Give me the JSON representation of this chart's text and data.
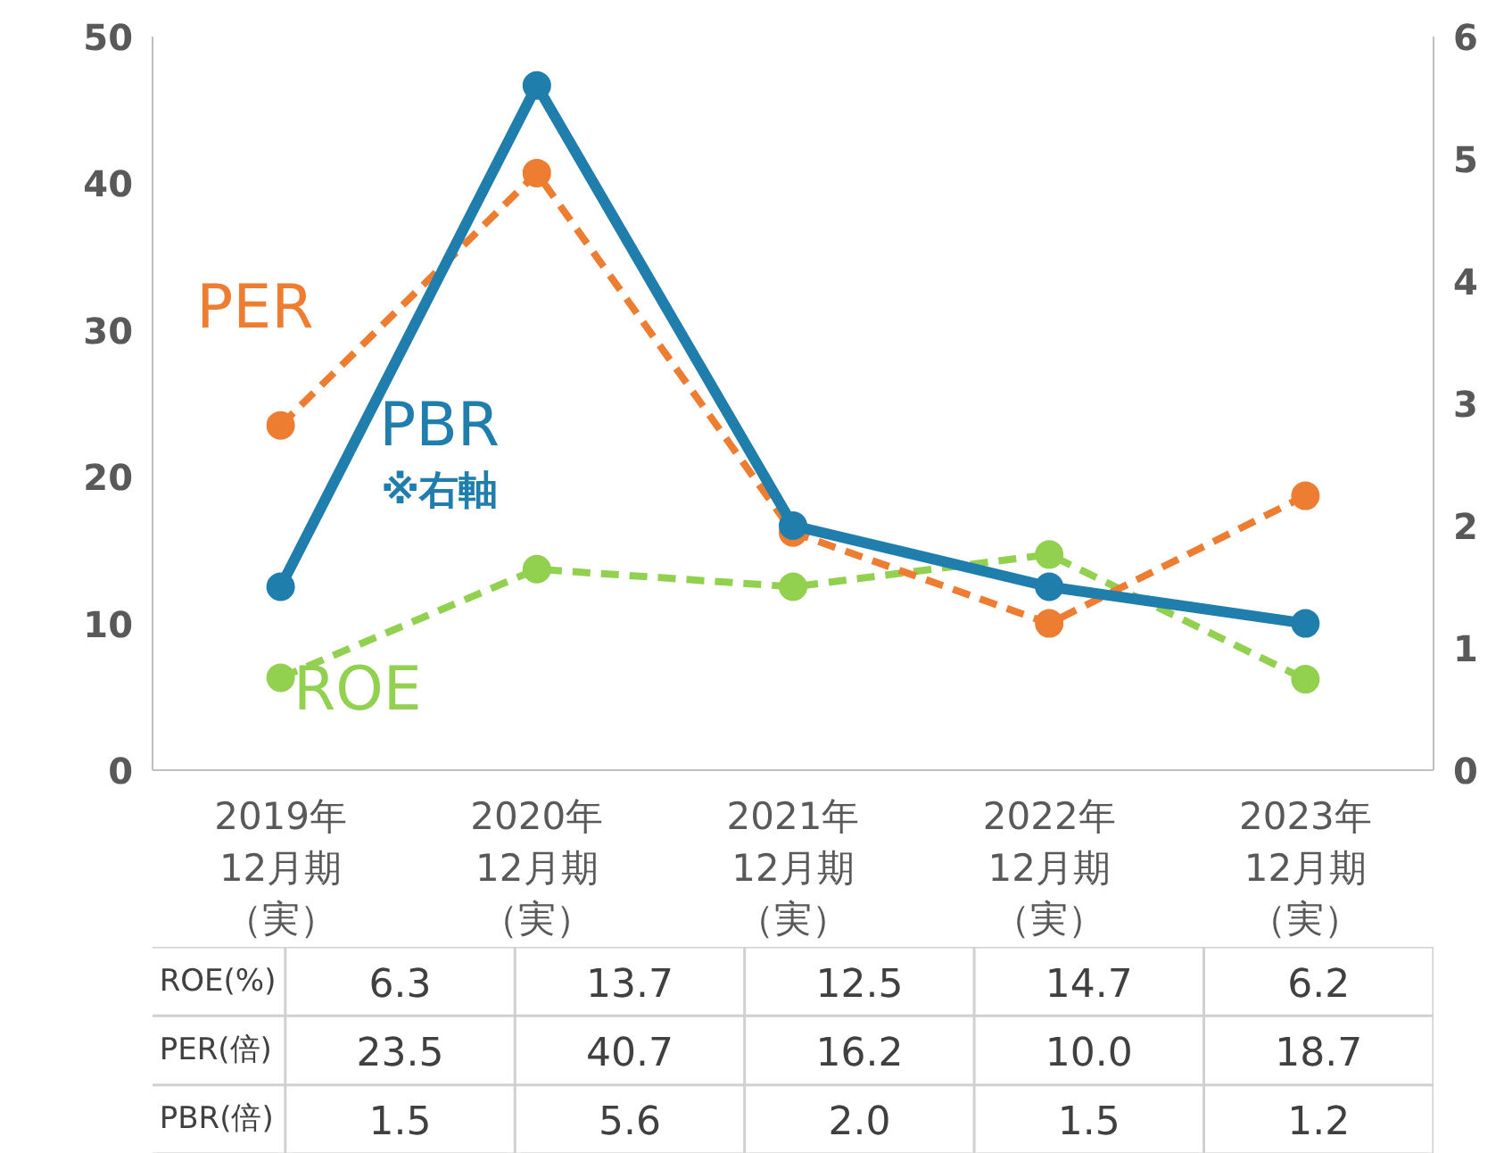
{
  "chart_data": {
    "type": "line",
    "categories": [
      "2019年12月期（実）",
      "2020年12月期（実）",
      "2021年12月期（実）",
      "2022年12月期（実）",
      "2023年12月期（実）"
    ],
    "series": [
      {
        "name": "ROE",
        "color": "#92d050",
        "values": [
          6.3,
          13.7,
          12.5,
          14.7,
          6.2
        ],
        "value_labels": [
          "6.3",
          "13.7",
          "12.5",
          "14.7",
          "6.2"
        ],
        "line_style": "dashed",
        "marker": "circle"
      },
      {
        "name": "PER",
        "color": "#ed7d31",
        "values": [
          23.5,
          40.7,
          16.2,
          10.0,
          18.7
        ],
        "value_labels": [
          "23.5",
          "40.7",
          "16.2",
          "10.0",
          "18.7"
        ],
        "line_style": "dashed",
        "marker": "circle"
      },
      {
        "name": "PBR",
        "color": "#1f7eac",
        "values": [
          1.5,
          5.6,
          2.0,
          1.5,
          1.2
        ],
        "value_labels": [
          "1.5",
          "5.6",
          "2.0",
          "1.5",
          "1.2"
        ],
        "line_style": "solid",
        "marker": "circle",
        "axis": "y2"
      }
    ],
    "ylim": [
      0,
      50
    ],
    "yticks": [
      0,
      10,
      20,
      30,
      40,
      50
    ],
    "y2lim": [
      0,
      6
    ],
    "y2ticks": [
      0,
      1,
      2,
      3,
      4,
      5,
      6
    ],
    "grid": false,
    "legend": false,
    "annotations": [
      "※右軸",
      "ROE(%)",
      "PER(倍)",
      "PBR(倍)"
    ]
  }
}
